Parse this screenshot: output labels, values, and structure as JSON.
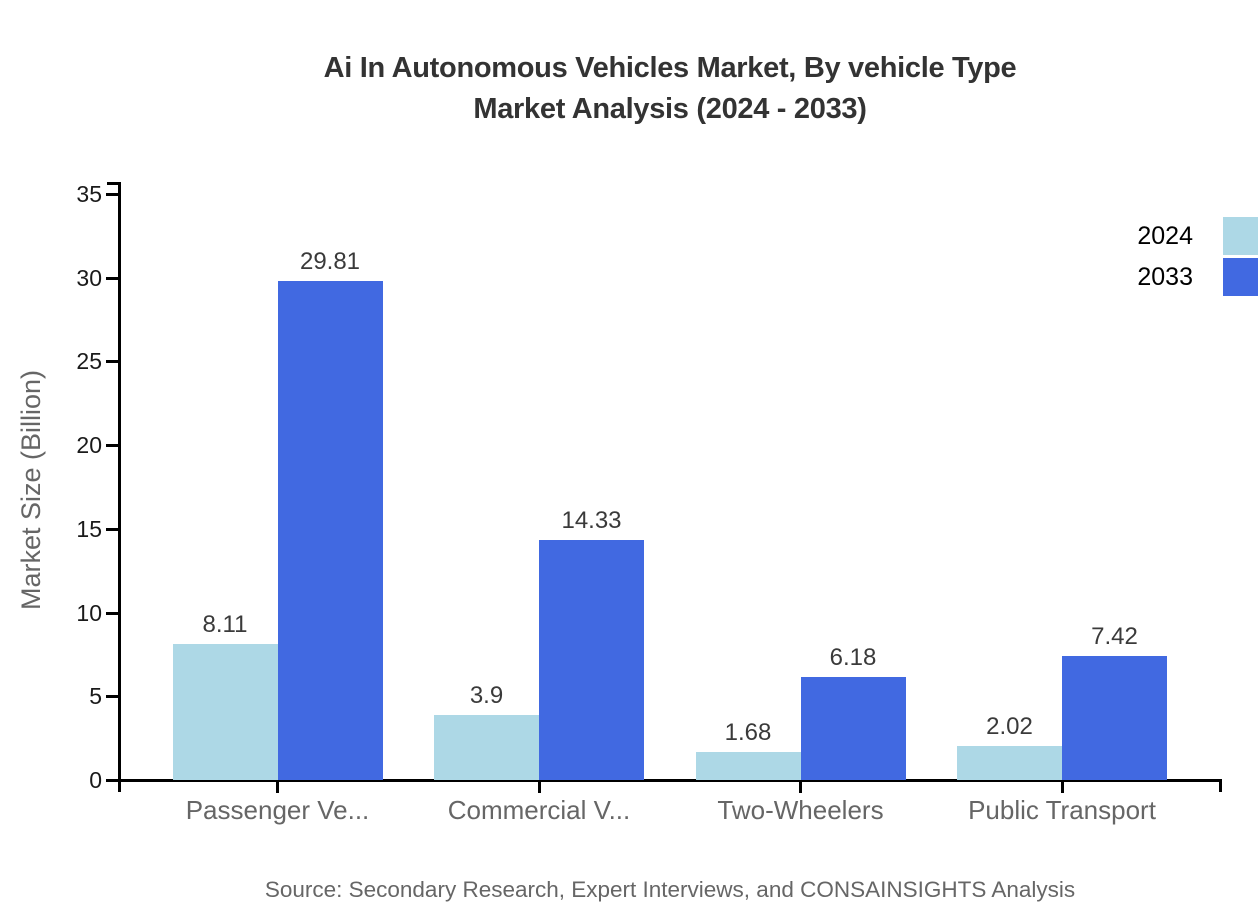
{
  "chart_data": {
    "type": "bar",
    "title": "Ai In Autonomous Vehicles Market, By vehicle Type",
    "subtitle": "Market Analysis (2024 - 2033)",
    "ylabel": "Market Size (Billion)",
    "xlabel": "",
    "categories": [
      "Passenger Ve...",
      "Commercial V...",
      "Two-Wheelers",
      "Public Transport"
    ],
    "series": [
      {
        "name": "2024",
        "color": "#ADD8E6",
        "values": [
          8.11,
          3.9,
          1.68,
          2.02
        ]
      },
      {
        "name": "2033",
        "color": "#4169E1",
        "values": [
          29.81,
          14.33,
          6.18,
          7.42
        ]
      }
    ],
    "ylim": [
      0,
      35
    ],
    "yticks": [
      0,
      5,
      10,
      15,
      20,
      25,
      30,
      35
    ],
    "grid": false,
    "legend_position": "top-right",
    "source": "Source: Secondary Research, Expert Interviews, and CONSAINSIGHTS Analysis"
  },
  "colors": {
    "title_text": "#333333",
    "axis_line": "#000000",
    "y_tick_label": "#1a1a1a",
    "category_label": "#666666",
    "value_label": "#3a3a3a",
    "source_text": "#666666",
    "series_2024": "#ADD8E6",
    "series_2033": "#4169E1",
    "background": "#ffffff"
  }
}
